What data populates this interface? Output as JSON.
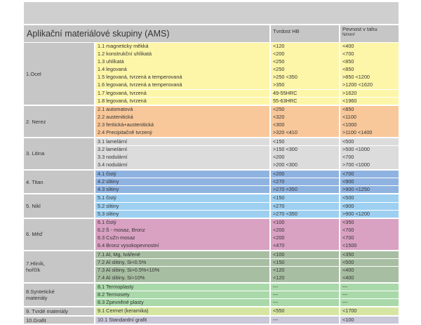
{
  "header": {
    "title": "Aplikační materiálové skupiny (AMS)",
    "hardness": "Tvrdost HB",
    "strength": "Pevnost v tahu",
    "strength_unit": "N/mm²"
  },
  "groups": [
    {
      "name": "1.Ocel",
      "color": "#fdf6a8",
      "rows": [
        [
          "1.1 magneticky měkká",
          "<120",
          "<400"
        ],
        [
          "1.2 konstrukční uhlíkatá",
          "<200",
          "<700"
        ],
        [
          "1.3 uhlíkatá",
          "<250",
          "<850"
        ],
        [
          "1.4 legovaná",
          "<250",
          "<850"
        ],
        [
          "1.5 legovaná, tvrzená a temperovaná",
          ">250 <350",
          ">850   <1200"
        ],
        [
          "1.6 legovaná, tvrzená a temperovaná",
          ">350",
          ">1200 <1620"
        ],
        [
          "1.7 legovaná, tvrzená",
          "49-55HRC",
          ">1620"
        ],
        [
          "1.8 legovaná, tvrzená",
          "55-63HRC",
          "<1960"
        ]
      ]
    },
    {
      "name": "2. Nerez",
      "color": "#f9c89a",
      "rows": [
        [
          "2.1 automatová",
          "<250",
          "<850"
        ],
        [
          "2.2 austenitická",
          "<320",
          "<1100"
        ],
        [
          "2.3 feritická+austenitická",
          "<300",
          "<1000"
        ],
        [
          "2.4 Precipitačně tvrzený",
          ">320 <410",
          ">1100 <1400"
        ]
      ]
    },
    {
      "name": "3. Litina",
      "color": "#dcdcdc",
      "rows": [
        [
          "3.1 lamelární",
          "<150",
          "<500"
        ],
        [
          "3.2 lamelární",
          ">150 <300",
          ">500 <1000"
        ],
        [
          "3.3 nodulární",
          "<200",
          "<700"
        ],
        [
          "3.4 nodulární",
          ">200 <300",
          ">700 <1000"
        ]
      ]
    },
    {
      "name": "4. Titan",
      "color": "#8fb3e0",
      "rows": [
        [
          "4.1 čistý",
          "<200",
          "<700"
        ],
        [
          "4.2 slitiny",
          "<270",
          "<900"
        ],
        [
          "4.3 slitiny",
          ">270 <350",
          ">900 <1250"
        ]
      ]
    },
    {
      "name": "5.  Nikl",
      "color": "#9dcff0",
      "rows": [
        [
          "5.1 čistý",
          "<150",
          "<500"
        ],
        [
          "5.2 slitiny",
          "<270",
          "<900"
        ],
        [
          "5.3 slitiny",
          ">270 <350",
          ">900 <1200"
        ]
      ]
    },
    {
      "name": "6. Měď",
      "color": "#d9a1c2",
      "rows": [
        [
          "6.1 čistý",
          "<100",
          "<350"
        ],
        [
          "6.2 ß - mosaz, Bronz",
          "<200",
          "<700"
        ],
        [
          "6.3 CuZn mosaz",
          "<200",
          "<700"
        ],
        [
          "6.4 Bronz vysokopevnostní",
          "<470",
          "<1500"
        ]
      ]
    },
    {
      "name": "7.Hliník,\n   hořčík",
      "color": "#a8bea2",
      "rows": [
        [
          "7.1 Al, Mg, tvářené",
          "<100",
          "<350"
        ],
        [
          "7.2 Al slitiny, Si<0.5%",
          "<150",
          "<500"
        ],
        [
          "7.3 Al slitiny, Si>0.5%<10%",
          "<120",
          "<400"
        ],
        [
          "7.4 Al slitiny, Si>10%",
          "<120",
          "<400"
        ]
      ]
    },
    {
      "name": "8.Syntetické\n   materiály",
      "color": "#a9d8a9",
      "rows": [
        [
          "8.1 Termoplasty",
          "---",
          "---"
        ],
        [
          "8.2 Termosety",
          "---",
          "---"
        ],
        [
          "8.3 Zpevněné plasty",
          "---",
          "---"
        ]
      ]
    },
    {
      "name": "9. Tvrdé materiály",
      "color": "#d6e6a2",
      "rows": [
        [
          "9.1 Cermet (keramika)",
          "<550",
          "<1700"
        ]
      ]
    },
    {
      "name": "10.Grafit",
      "color": "#c9c9d9",
      "rows": [
        [
          "10.1 Standardní grafit",
          "---",
          "<100"
        ]
      ]
    }
  ]
}
